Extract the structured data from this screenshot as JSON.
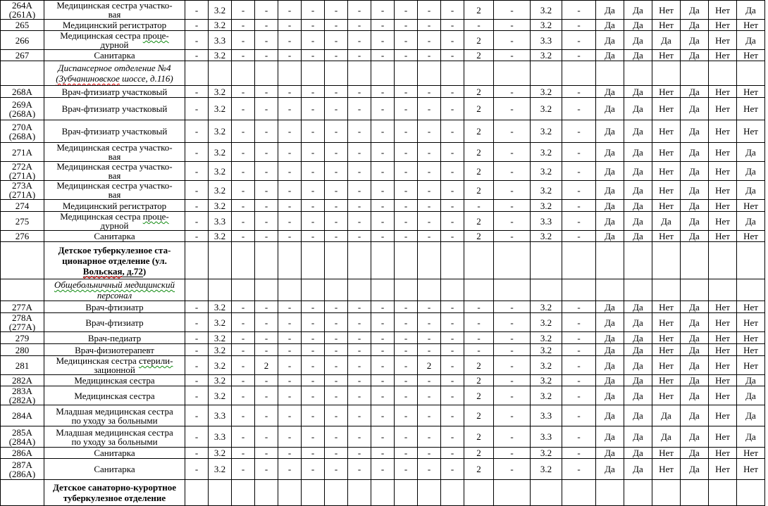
{
  "table_meta": {
    "grid_color": "#000000",
    "text_color": "#000000",
    "spellcheck_red": "#e60000",
    "grammar_green": "#0f8a0f",
    "columns": {
      "num_width": 62,
      "position_width": 200,
      "narrow_count": 12,
      "narrow_width": 33,
      "col15_width": 42,
      "col16_width": 52,
      "col17_width": 45,
      "col18_width": 48,
      "flag_count": 6,
      "flag_width": 40
    }
  },
  "rows": [
    {
      "kind": "data",
      "h": 26,
      "num": "264А\n(261А)",
      "pos": [
        {
          "t": "Медицинская сестра участко-\nвая"
        }
      ],
      "vals": [
        "-",
        "3.2",
        "-",
        "-",
        "-",
        "-",
        "-",
        "-",
        "-",
        "-",
        "-",
        "-",
        "2",
        "-",
        "3.2",
        "-"
      ],
      "flags": [
        "Да",
        "Да",
        "Нет",
        "Да",
        "Нет",
        "Да"
      ]
    },
    {
      "kind": "data",
      "h": 16,
      "num": "265",
      "pos": [
        {
          "t": "Медицинский регистратор"
        }
      ],
      "vals": [
        "-",
        "3.2",
        "-",
        "-",
        "-",
        "-",
        "-",
        "-",
        "-",
        "-",
        "-",
        "-",
        "-",
        "-",
        "3.2",
        "-"
      ],
      "flags": [
        "Да",
        "Да",
        "Нет",
        "Да",
        "Нет",
        "Нет"
      ]
    },
    {
      "kind": "data",
      "h": 26,
      "num": "266",
      "pos": [
        {
          "t": "Медицинская сестра "
        },
        {
          "t": "проце-\nдурной",
          "m": "wavy-green"
        }
      ],
      "vals": [
        "-",
        "3.3",
        "-",
        "-",
        "-",
        "-",
        "-",
        "-",
        "-",
        "-",
        "-",
        "-",
        "2",
        "-",
        "3.3",
        "-"
      ],
      "flags": [
        "Да",
        "Да",
        "Да",
        "Да",
        "Нет",
        "Да"
      ]
    },
    {
      "kind": "data",
      "h": 16,
      "num": "267",
      "pos": [
        {
          "t": "Санитарка"
        }
      ],
      "vals": [
        "-",
        "3.2",
        "-",
        "-",
        "-",
        "-",
        "-",
        "-",
        "-",
        "-",
        "-",
        "-",
        "2",
        "-",
        "3.2",
        "-"
      ],
      "flags": [
        "Да",
        "Да",
        "Нет",
        "Да",
        "Нет",
        "Нет"
      ]
    },
    {
      "kind": "section",
      "h": 35,
      "style": "italic",
      "pos": [
        {
          "t": "Диспансерное отделение №4\n"
        },
        {
          "t": "(Зубчаниновское",
          "m": "wavy-red"
        },
        {
          "t": " шоссе, д.116)"
        }
      ]
    },
    {
      "kind": "data",
      "h": 17,
      "num": "268А",
      "pos": [
        {
          "t": "Врач-фтизиатр участковый"
        }
      ],
      "vals": [
        "-",
        "3.2",
        "-",
        "-",
        "-",
        "-",
        "-",
        "-",
        "-",
        "-",
        "-",
        "-",
        "2",
        "-",
        "3.2",
        "-"
      ],
      "flags": [
        "Да",
        "Да",
        "Нет",
        "Да",
        "Нет",
        "Нет"
      ]
    },
    {
      "kind": "data",
      "h": 32,
      "num": "269А\n(268А)",
      "pos": [
        {
          "t": "Врач-фтизиатр участковый"
        }
      ],
      "vals": [
        "-",
        "3.2",
        "-",
        "-",
        "-",
        "-",
        "-",
        "-",
        "-",
        "-",
        "-",
        "-",
        "2",
        "-",
        "3.2",
        "-"
      ],
      "flags": [
        "Да",
        "Да",
        "Нет",
        "Да",
        "Нет",
        "Нет"
      ]
    },
    {
      "kind": "data",
      "h": 32,
      "num": "270А\n(268А)",
      "pos": [
        {
          "t": "Врач-фтизиатр участковый"
        }
      ],
      "vals": [
        "-",
        "3.2",
        "-",
        "-",
        "-",
        "-",
        "-",
        "-",
        "-",
        "-",
        "-",
        "-",
        "2",
        "-",
        "3.2",
        "-"
      ],
      "flags": [
        "Да",
        "Да",
        "Нет",
        "Да",
        "Нет",
        "Нет"
      ]
    },
    {
      "kind": "data",
      "h": 26,
      "num": "271А",
      "pos": [
        {
          "t": "Медицинская сестра участко-\nвая"
        }
      ],
      "vals": [
        "-",
        "3.2",
        "-",
        "-",
        "-",
        "-",
        "-",
        "-",
        "-",
        "-",
        "-",
        "-",
        "2",
        "-",
        "3.2",
        "-"
      ],
      "flags": [
        "Да",
        "Да",
        "Нет",
        "Да",
        "Нет",
        "Да"
      ]
    },
    {
      "kind": "data",
      "h": 26,
      "num": "272А\n(271А)",
      "pos": [
        {
          "t": "Медицинская сестра участко-\nвая"
        }
      ],
      "vals": [
        "-",
        "3.2",
        "-",
        "-",
        "-",
        "-",
        "-",
        "-",
        "-",
        "-",
        "-",
        "-",
        "2",
        "-",
        "3.2",
        "-"
      ],
      "flags": [
        "Да",
        "Да",
        "Нет",
        "Да",
        "Нет",
        "Да"
      ]
    },
    {
      "kind": "data",
      "h": 26,
      "num": "273А\n(271А)",
      "pos": [
        {
          "t": "Медицинская сестра участко-\nвая"
        }
      ],
      "vals": [
        "-",
        "3.2",
        "-",
        "-",
        "-",
        "-",
        "-",
        "-",
        "-",
        "-",
        "-",
        "-",
        "2",
        "-",
        "3.2",
        "-"
      ],
      "flags": [
        "Да",
        "Да",
        "Нет",
        "Да",
        "Нет",
        "Да"
      ]
    },
    {
      "kind": "data",
      "h": 17,
      "num": "274",
      "pos": [
        {
          "t": "Медицинский регистратор"
        }
      ],
      "vals": [
        "-",
        "3.2",
        "-",
        "-",
        "-",
        "-",
        "-",
        "-",
        "-",
        "-",
        "-",
        "-",
        "-",
        "-",
        "3.2",
        "-"
      ],
      "flags": [
        "Да",
        "Да",
        "Нет",
        "Да",
        "Нет",
        "Нет"
      ]
    },
    {
      "kind": "data",
      "h": 26,
      "num": "275",
      "pos": [
        {
          "t": "Медицинская сестра "
        },
        {
          "t": "проце-\nдурной",
          "m": "wavy-green"
        }
      ],
      "vals": [
        "-",
        "3.3",
        "-",
        "-",
        "-",
        "-",
        "-",
        "-",
        "-",
        "-",
        "-",
        "-",
        "2",
        "-",
        "3.3",
        "-"
      ],
      "flags": [
        "Да",
        "Да",
        "Да",
        "Да",
        "Нет",
        "Да"
      ]
    },
    {
      "kind": "data",
      "h": 16,
      "num": "276",
      "pos": [
        {
          "t": "Санитарка"
        }
      ],
      "vals": [
        "-",
        "3.2",
        "-",
        "-",
        "-",
        "-",
        "-",
        "-",
        "-",
        "-",
        "-",
        "-",
        "2",
        "-",
        "3.2",
        "-"
      ],
      "flags": [
        "Да",
        "Да",
        "Нет",
        "Да",
        "Нет",
        "Нет"
      ]
    },
    {
      "kind": "section",
      "h": 53,
      "style": "bold",
      "pos": [
        {
          "t": "Детское туберкулезное ста-\nционарное отделение (ул.\n"
        },
        {
          "t": "Вольская",
          "m": "wavy-red solid"
        },
        {
          "t": ", д.72",
          "m": "solid"
        },
        {
          "t": ")"
        }
      ]
    },
    {
      "kind": "section",
      "h": 30,
      "style": "italic",
      "pos": [
        {
          "t": "Общебольничный медицинский",
          "m": "wavy-green"
        },
        {
          "t": "\nперсонал"
        }
      ]
    },
    {
      "kind": "data",
      "h": 17,
      "num": "277А",
      "pos": [
        {
          "t": "Врач-фтизиатр"
        }
      ],
      "vals": [
        "-",
        "3.2",
        "-",
        "-",
        "-",
        "-",
        "-",
        "-",
        "-",
        "-",
        "-",
        "-",
        "-",
        "-",
        "3.2",
        "-"
      ],
      "flags": [
        "Да",
        "Да",
        "Нет",
        "Да",
        "Нет",
        "Нет"
      ]
    },
    {
      "kind": "data",
      "h": 27,
      "num": "278А\n(277А)",
      "pos": [
        {
          "t": "Врач-фтизиатр"
        }
      ],
      "vals": [
        "-",
        "3.2",
        "-",
        "-",
        "-",
        "-",
        "-",
        "-",
        "-",
        "-",
        "-",
        "-",
        "-",
        "-",
        "3.2",
        "-"
      ],
      "flags": [
        "Да",
        "Да",
        "Нет",
        "Да",
        "Нет",
        "Нет"
      ]
    },
    {
      "kind": "data",
      "h": 17,
      "num": "279",
      "pos": [
        {
          "t": "Врач-педиатр"
        }
      ],
      "vals": [
        "-",
        "3.2",
        "-",
        "-",
        "-",
        "-",
        "-",
        "-",
        "-",
        "-",
        "-",
        "-",
        "-",
        "-",
        "3.2",
        "-"
      ],
      "flags": [
        "Да",
        "Да",
        "Нет",
        "Да",
        "Нет",
        "Нет"
      ]
    },
    {
      "kind": "data",
      "h": 17,
      "num": "280",
      "pos": [
        {
          "t": "Врач-физиотерапевт"
        }
      ],
      "vals": [
        "-",
        "3.2",
        "-",
        "-",
        "-",
        "-",
        "-",
        "-",
        "-",
        "-",
        "-",
        "-",
        "-",
        "-",
        "3.2",
        "-"
      ],
      "flags": [
        "Да",
        "Да",
        "Нет",
        "Да",
        "Нет",
        "Нет"
      ]
    },
    {
      "kind": "data",
      "h": 27,
      "num": "281",
      "pos": [
        {
          "t": "Медицинская сестра "
        },
        {
          "t": "стерили-\nзационной",
          "m": "wavy-green"
        }
      ],
      "vals": [
        "-",
        "3.2",
        "-",
        "2",
        "-",
        "-",
        "-",
        "-",
        "-",
        "-",
        "2",
        "-",
        "2",
        "-",
        "3.2",
        "-"
      ],
      "flags": [
        "Да",
        "Да",
        "Нет",
        "Да",
        "Нет",
        "Нет"
      ]
    },
    {
      "kind": "data",
      "h": 16,
      "num": "282А",
      "pos": [
        {
          "t": "Медицинская сестра"
        }
      ],
      "vals": [
        "-",
        "3.2",
        "-",
        "-",
        "-",
        "-",
        "-",
        "-",
        "-",
        "-",
        "-",
        "-",
        "2",
        "-",
        "3.2",
        "-"
      ],
      "flags": [
        "Да",
        "Да",
        "Нет",
        "Да",
        "Нет",
        "Да"
      ]
    },
    {
      "kind": "data",
      "h": 26,
      "num": "283А\n(282А)",
      "pos": [
        {
          "t": "Медицинская сестра"
        }
      ],
      "vals": [
        "-",
        "3.2",
        "-",
        "-",
        "-",
        "-",
        "-",
        "-",
        "-",
        "-",
        "-",
        "-",
        "2",
        "-",
        "3.2",
        "-"
      ],
      "flags": [
        "Да",
        "Да",
        "Нет",
        "Да",
        "Нет",
        "Да"
      ]
    },
    {
      "kind": "data",
      "h": 30,
      "num": "284А",
      "pos": [
        {
          "t": "Младшая медицинская сестра\nпо уходу за больными"
        }
      ],
      "vals": [
        "-",
        "3.3",
        "-",
        "-",
        "-",
        "-",
        "-",
        "-",
        "-",
        "-",
        "-",
        "-",
        "2",
        "-",
        "3.3",
        "-"
      ],
      "flags": [
        "Да",
        "Да",
        "Да",
        "Да",
        "Нет",
        "Да"
      ]
    },
    {
      "kind": "data",
      "h": 30,
      "num": "285А\n(284А)",
      "pos": [
        {
          "t": "Младшая медицинская сестра\nпо уходу за больными"
        }
      ],
      "vals": [
        "-",
        "3.3",
        "-",
        "-",
        "-",
        "-",
        "-",
        "-",
        "-",
        "-",
        "-",
        "-",
        "2",
        "-",
        "3.3",
        "-"
      ],
      "flags": [
        "Да",
        "Да",
        "Да",
        "Да",
        "Нет",
        "Да"
      ]
    },
    {
      "kind": "data",
      "h": 16,
      "num": "286А",
      "pos": [
        {
          "t": "Санитарка"
        }
      ],
      "vals": [
        "-",
        "3.2",
        "-",
        "-",
        "-",
        "-",
        "-",
        "-",
        "-",
        "-",
        "-",
        "-",
        "2",
        "-",
        "3.2",
        "-"
      ],
      "flags": [
        "Да",
        "Да",
        "Нет",
        "Да",
        "Нет",
        "Нет"
      ]
    },
    {
      "kind": "data",
      "h": 30,
      "num": "287А\n(286А)",
      "pos": [
        {
          "t": "Санитарка"
        }
      ],
      "vals": [
        "-",
        "3.2",
        "-",
        "-",
        "-",
        "-",
        "-",
        "-",
        "-",
        "-",
        "-",
        "-",
        "2",
        "-",
        "3.2",
        "-"
      ],
      "flags": [
        "Да",
        "Да",
        "Нет",
        "Да",
        "Нет",
        "Нет"
      ]
    },
    {
      "kind": "section",
      "h": 37,
      "style": "bold",
      "pos": [
        {
          "t": "Детское санаторно-курортное\nтуберкулезное отделение"
        }
      ]
    }
  ]
}
